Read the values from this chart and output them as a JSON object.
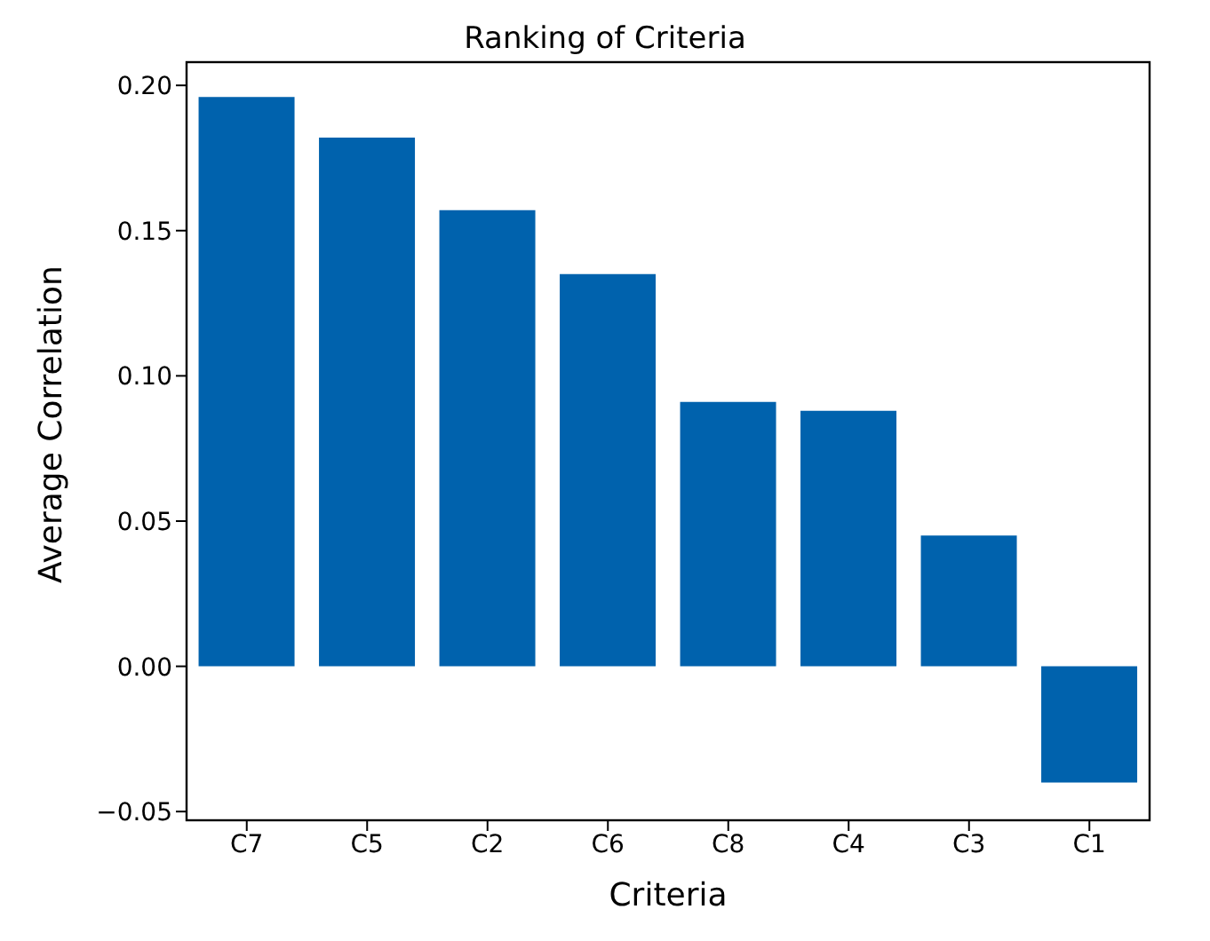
{
  "chart_data": {
    "type": "bar",
    "title": "Ranking of Criteria",
    "xlabel": "Criteria",
    "ylabel": "Average Correlation",
    "categories": [
      "C7",
      "C5",
      "C2",
      "C6",
      "C8",
      "C4",
      "C3",
      "C1"
    ],
    "values": [
      0.196,
      0.182,
      0.157,
      0.135,
      0.091,
      0.088,
      0.045,
      -0.04
    ],
    "color": "#0062ad",
    "ylim": [
      -0.053,
      0.208
    ],
    "yticks": [
      {
        "value": -0.05,
        "label": "−0.05"
      },
      {
        "value": 0,
        "label": "0.00"
      },
      {
        "value": 0.05,
        "label": "0.05"
      },
      {
        "value": 0.1,
        "label": "0.10"
      },
      {
        "value": 0.15,
        "label": "0.15"
      },
      {
        "value": 0.2,
        "label": "0.20"
      }
    ]
  }
}
